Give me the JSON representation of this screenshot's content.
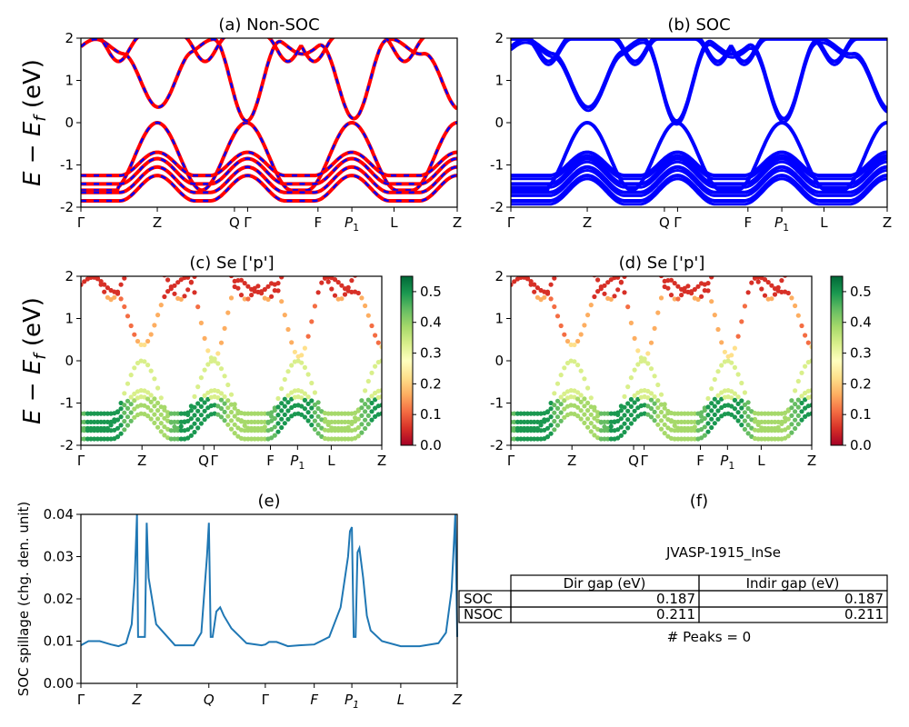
{
  "chart_data": [
    {
      "panel": "a",
      "type": "line",
      "title": "(a) Non-SOC",
      "ylabel": "E − E_f (eV)",
      "xlabel": "",
      "ylim": [
        -2,
        2
      ],
      "yticks": [
        -2,
        -1,
        0,
        1,
        2
      ],
      "kpath": [
        "Γ",
        "Z",
        "Q",
        "Γ",
        "F",
        "P1",
        "L",
        "Z"
      ],
      "kpath_positions": [
        0,
        0.203,
        0.408,
        0.443,
        0.63,
        0.72,
        0.832,
        1.0
      ],
      "series": [
        {
          "style": "solid",
          "color": "#ff0000"
        },
        {
          "style": "dashed",
          "color": "#0000ff"
        }
      ]
    },
    {
      "panel": "b",
      "type": "line",
      "title": "(b) SOC",
      "ylim": [
        -2,
        2
      ],
      "yticks": [
        -2,
        -1,
        0,
        1,
        2
      ],
      "kpath": [
        "Γ",
        "Z",
        "Q",
        "Γ",
        "F",
        "P1",
        "L",
        "Z"
      ],
      "kpath_positions": [
        0,
        0.203,
        0.408,
        0.443,
        0.63,
        0.72,
        0.832,
        1.0
      ],
      "series": [
        {
          "style": "solid",
          "color": "#0000ff"
        }
      ]
    },
    {
      "panel": "c",
      "type": "scatter",
      "title": "(c)  Se ['p']",
      "ylabel": "E − E_f (eV)",
      "ylim": [
        -2,
        2
      ],
      "yticks": [
        -2,
        -1,
        0,
        1,
        2
      ],
      "kpath": [
        "Γ",
        "Z",
        "Q",
        "Γ",
        "F",
        "P1",
        "L",
        "Z"
      ],
      "kpath_positions": [
        0,
        0.203,
        0.408,
        0.443,
        0.63,
        0.72,
        0.832,
        1.0
      ],
      "colorbar": {
        "min": 0.0,
        "max": 0.55,
        "ticks": [
          "0.0",
          "0.1",
          "0.2",
          "0.3",
          "0.4",
          "0.5"
        ],
        "colormap": "RdYlGn"
      }
    },
    {
      "panel": "d",
      "type": "scatter",
      "title": "(d) Se ['p']",
      "ylim": [
        -2,
        2
      ],
      "yticks": [
        -2,
        -1,
        0,
        1,
        2
      ],
      "kpath": [
        "Γ",
        "Z",
        "Q",
        "Γ",
        "F",
        "P1",
        "L",
        "Z"
      ],
      "kpath_positions": [
        0,
        0.203,
        0.408,
        0.443,
        0.63,
        0.72,
        0.832,
        1.0
      ],
      "colorbar": {
        "min": 0.0,
        "max": 0.55,
        "ticks": [
          "0.0",
          "0.1",
          "0.2",
          "0.3",
          "0.4",
          "0.5"
        ],
        "colormap": "RdYlGn"
      }
    },
    {
      "panel": "e",
      "type": "line",
      "title": "(e)",
      "ylabel": "SOC spillage (chg. den. unit)",
      "ylim": [
        0.0,
        0.04
      ],
      "yticks": [
        "0.00",
        "0.01",
        "0.02",
        "0.03",
        "0.04"
      ],
      "kpath": [
        "Γ",
        "Z",
        "Q",
        "Γ",
        "F",
        "P1",
        "L",
        "Z"
      ],
      "kpath_positions": [
        0,
        0.149,
        0.34,
        0.49,
        0.62,
        0.72,
        0.85,
        1.0
      ],
      "color": "#1f77b4",
      "x": [
        0,
        0.02,
        0.05,
        0.08,
        0.1,
        0.12,
        0.135,
        0.143,
        0.149,
        0.152,
        0.155,
        0.16,
        0.17,
        0.175,
        0.18,
        0.2,
        0.25,
        0.3,
        0.32,
        0.33,
        0.335,
        0.34,
        0.345,
        0.35,
        0.355,
        0.36,
        0.37,
        0.38,
        0.4,
        0.44,
        0.48,
        0.49,
        0.5,
        0.52,
        0.55,
        0.58,
        0.62,
        0.66,
        0.69,
        0.71,
        0.715,
        0.72,
        0.725,
        0.73,
        0.735,
        0.74,
        0.75,
        0.76,
        0.77,
        0.8,
        0.85,
        0.9,
        0.95,
        0.97,
        0.985,
        0.995,
        1.0
      ],
      "y": [
        0.009,
        0.01,
        0.01,
        0.0092,
        0.0088,
        0.0095,
        0.014,
        0.025,
        0.04,
        0.011,
        0.011,
        0.011,
        0.011,
        0.038,
        0.025,
        0.014,
        0.009,
        0.009,
        0.012,
        0.024,
        0.03,
        0.038,
        0.011,
        0.011,
        0.014,
        0.017,
        0.018,
        0.016,
        0.013,
        0.0095,
        0.009,
        0.0092,
        0.0098,
        0.0098,
        0.0088,
        0.009,
        0.0092,
        0.011,
        0.018,
        0.03,
        0.036,
        0.037,
        0.011,
        0.011,
        0.031,
        0.032,
        0.025,
        0.016,
        0.0125,
        0.01,
        0.0088,
        0.0088,
        0.0095,
        0.012,
        0.022,
        0.04,
        0.011
      ]
    }
  ],
  "table": {
    "title": "(f)",
    "material": "JVASP-1915_InSe",
    "headers": [
      "Dir gap (eV)",
      "Indir gap (eV)"
    ],
    "rows": [
      {
        "label": "SOC",
        "dir": "0.187",
        "indir": "0.187"
      },
      {
        "label": "NSOC",
        "dir": "0.211",
        "indir": "0.211"
      }
    ],
    "peaks": "# Peaks = 0"
  }
}
